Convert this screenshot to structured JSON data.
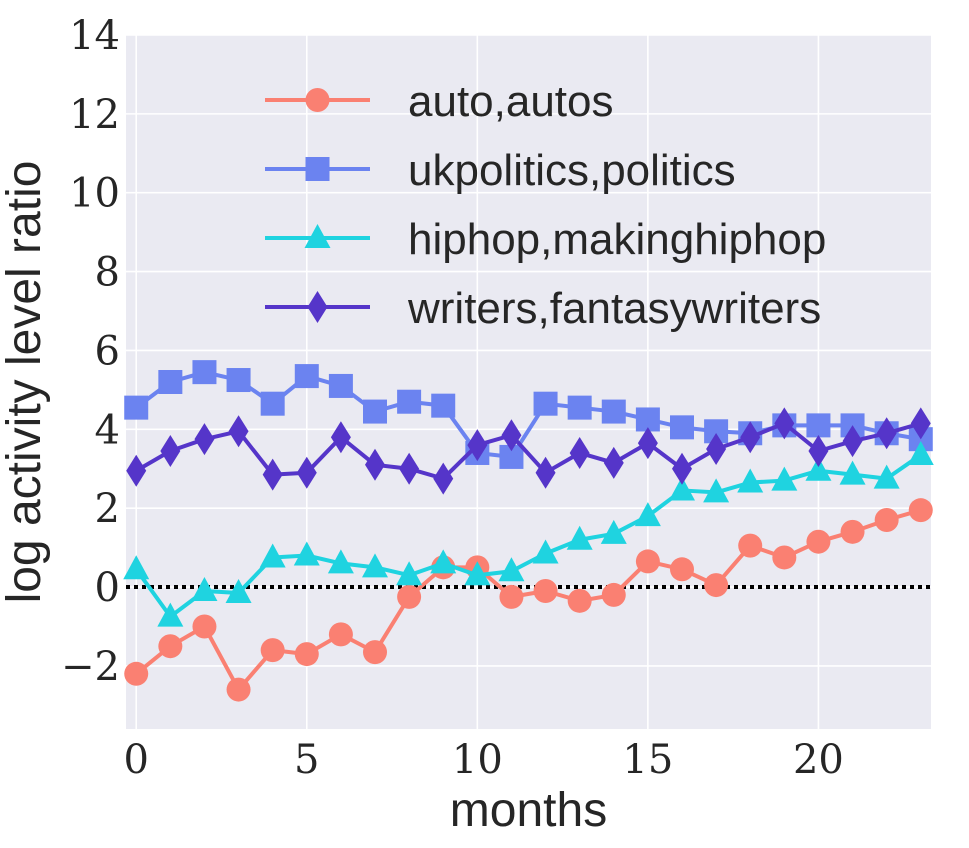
{
  "chart_data": {
    "type": "line",
    "xlabel": "months",
    "ylabel": "log activity level ratio",
    "xlim": [
      -0.3,
      23.3
    ],
    "ylim": [
      -3.6,
      14
    ],
    "xticks": [
      0,
      5,
      10,
      15,
      20
    ],
    "yticks": [
      -2,
      0,
      2,
      4,
      6,
      8,
      10,
      12,
      14
    ],
    "ytick_labels": [
      "−2",
      "0",
      "2",
      "4",
      "6",
      "8",
      "10",
      "12",
      "14"
    ],
    "xtick_labels": [
      "0",
      "5",
      "10",
      "15",
      "20"
    ],
    "grid": true,
    "background": "#eaeaf2",
    "legend_position": "top-center",
    "reference_line": {
      "y": 0,
      "style": "dotted",
      "color": "#000000"
    },
    "x": [
      0,
      1,
      2,
      3,
      4,
      5,
      6,
      7,
      8,
      9,
      10,
      11,
      12,
      13,
      14,
      15,
      16,
      17,
      18,
      19,
      20,
      21,
      22,
      23
    ],
    "series": [
      {
        "name": "auto,autos",
        "color": "#fa8072",
        "marker": "circle",
        "values": [
          -2.2,
          -1.5,
          -1.0,
          -2.6,
          -1.6,
          -1.7,
          -1.2,
          -1.65,
          -0.25,
          0.5,
          0.5,
          -0.25,
          -0.1,
          -0.35,
          -0.2,
          0.65,
          0.45,
          0.05,
          1.05,
          0.75,
          1.15,
          1.4,
          1.7,
          1.95
        ]
      },
      {
        "name": "ukpolitics,politics",
        "color": "#6b83f0",
        "marker": "square",
        "values": [
          4.55,
          5.2,
          5.45,
          5.25,
          4.65,
          5.35,
          5.1,
          4.45,
          4.7,
          4.6,
          3.4,
          3.3,
          4.65,
          4.55,
          4.45,
          4.25,
          4.05,
          3.95,
          3.9,
          4.1,
          4.1,
          4.1,
          3.9,
          3.75
        ]
      },
      {
        "name": "hiphop,makinghiphop",
        "color": "#1fd3e0",
        "marker": "triangle",
        "values": [
          0.45,
          -0.75,
          -0.1,
          -0.15,
          0.75,
          0.8,
          0.6,
          0.5,
          0.3,
          0.6,
          0.3,
          0.4,
          0.85,
          1.2,
          1.35,
          1.8,
          2.45,
          2.4,
          2.65,
          2.7,
          2.95,
          2.85,
          2.75,
          3.35
        ]
      },
      {
        "name": "writers,fantasywriters",
        "color": "#5535c9",
        "marker": "diamond",
        "values": [
          2.95,
          3.45,
          3.75,
          3.95,
          2.85,
          2.9,
          3.8,
          3.1,
          3.0,
          2.75,
          3.6,
          3.85,
          2.9,
          3.4,
          3.15,
          3.65,
          3.0,
          3.5,
          3.8,
          4.15,
          3.45,
          3.7,
          3.9,
          4.15
        ]
      }
    ]
  }
}
